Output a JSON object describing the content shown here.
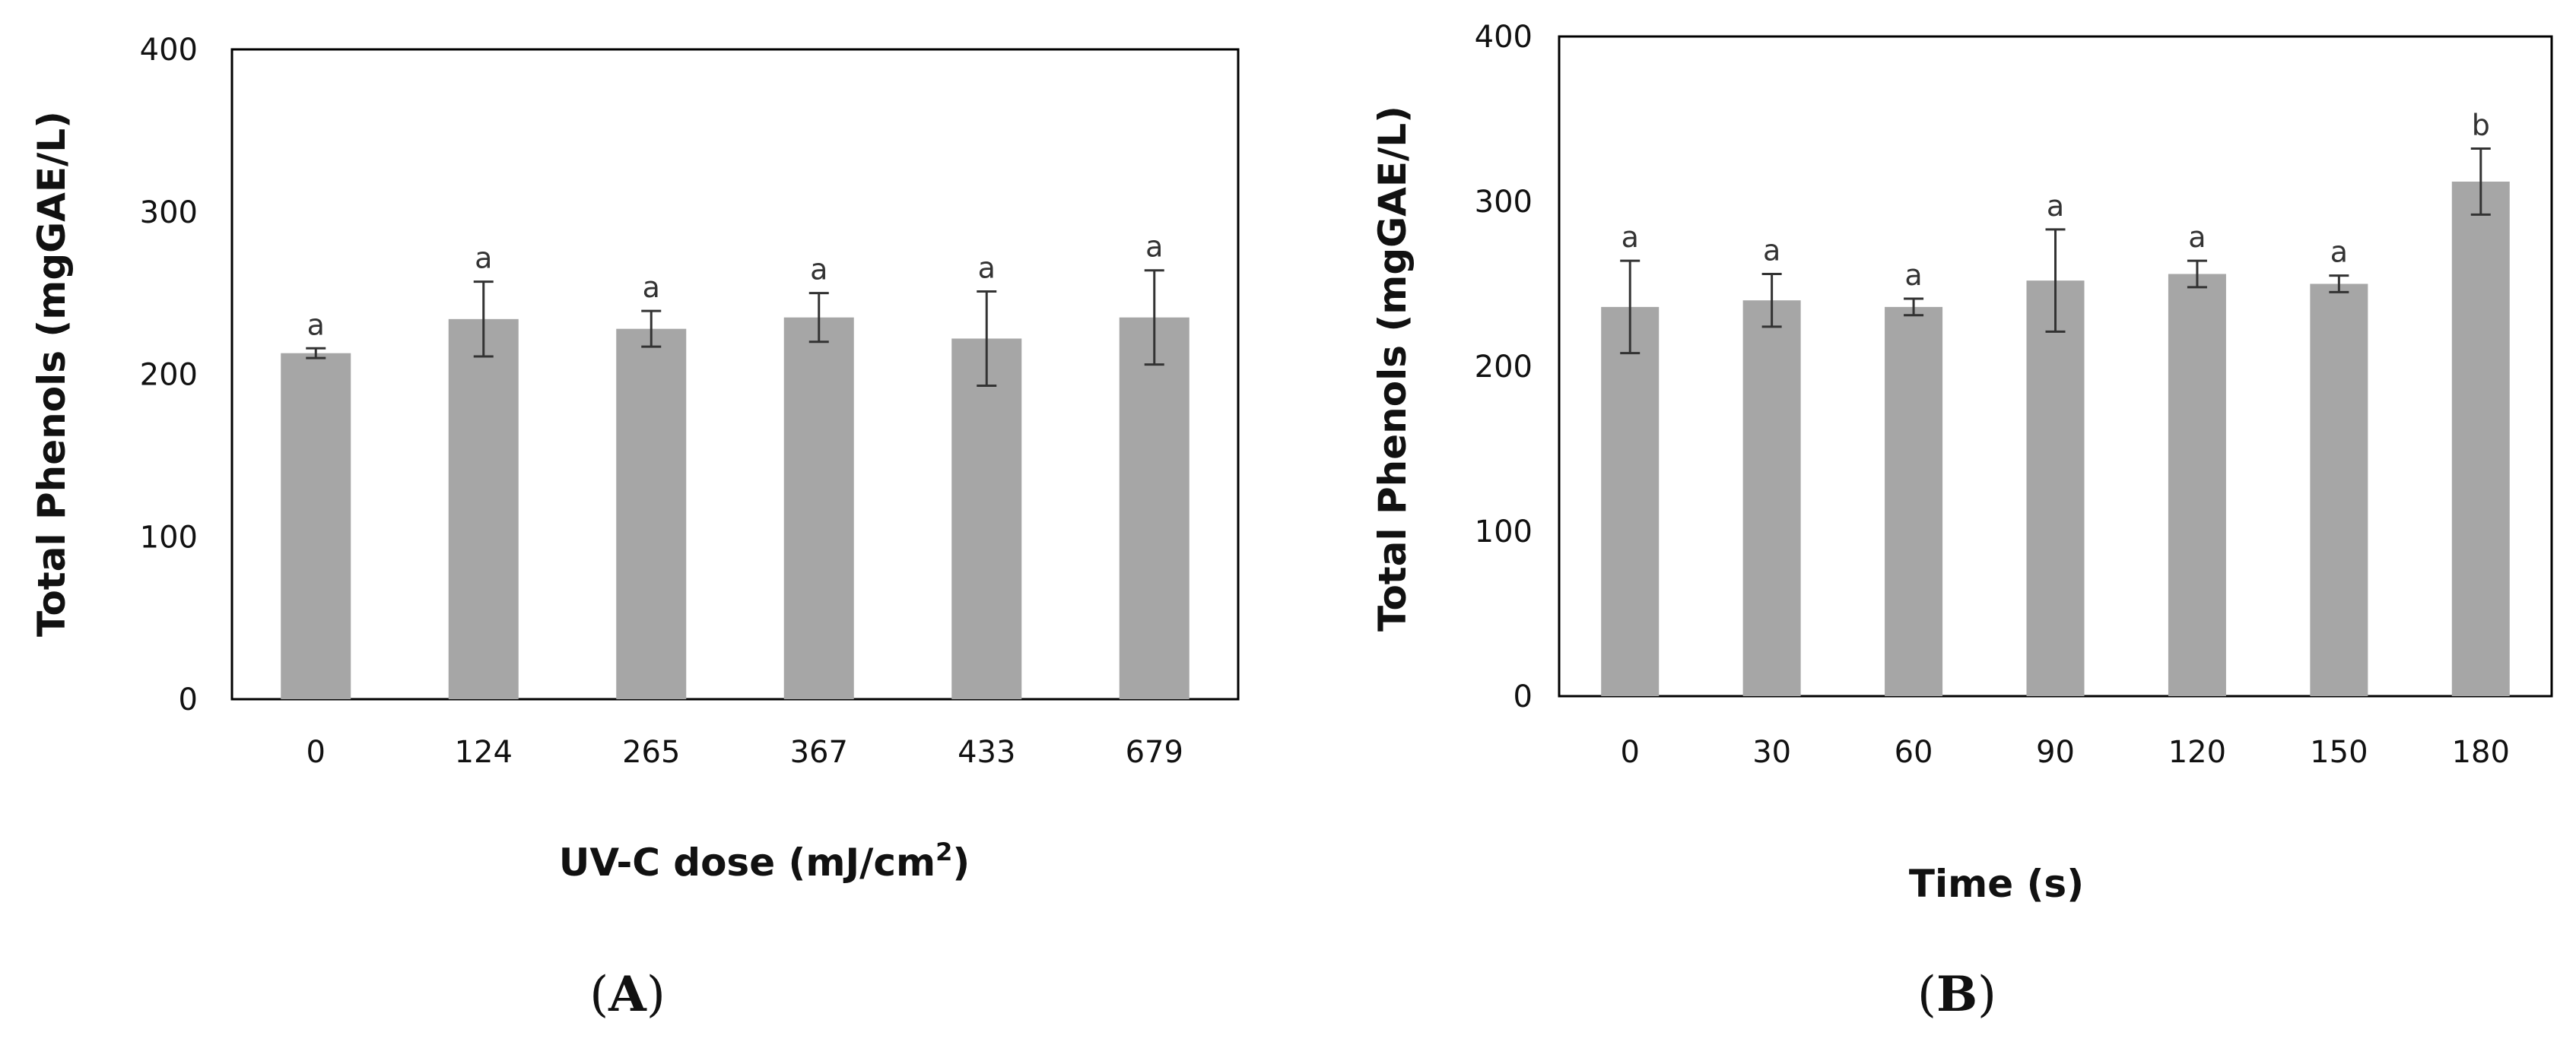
{
  "bar_color": "#a6a6a6",
  "chart_data": [
    {
      "type": "bar",
      "panel_label": "A",
      "title": "",
      "xlabel_main": "UV-C dose (mJ/cm",
      "xlabel_sup": "2",
      "xlabel_tail": ")",
      "ylabel": "Total Phenols (mgGAE/L)",
      "ylim": [
        0,
        400
      ],
      "yticks": [
        0,
        100,
        200,
        300,
        400
      ],
      "categories": [
        "0",
        "124",
        "265",
        "367",
        "433",
        "679"
      ],
      "values": [
        213,
        234,
        228,
        235,
        222,
        235
      ],
      "errors": [
        3,
        23,
        11,
        15,
        29,
        29
      ],
      "significance": [
        "a",
        "a",
        "a",
        "a",
        "a",
        "a"
      ]
    },
    {
      "type": "bar",
      "panel_label": "B",
      "title": "",
      "xlabel": "Time (s)",
      "ylabel": "Total Phenols (mgGAE/L)",
      "ylim": [
        0,
        400
      ],
      "yticks": [
        0,
        100,
        200,
        300,
        400
      ],
      "categories": [
        "0",
        "30",
        "60",
        "90",
        "120",
        "150",
        "180"
      ],
      "values": [
        236,
        240,
        236,
        252,
        256,
        250,
        312
      ],
      "errors": [
        28,
        16,
        5,
        31,
        8,
        5,
        20
      ],
      "significance": [
        "a",
        "a",
        "a",
        "a",
        "a",
        "a",
        "b"
      ]
    }
  ]
}
